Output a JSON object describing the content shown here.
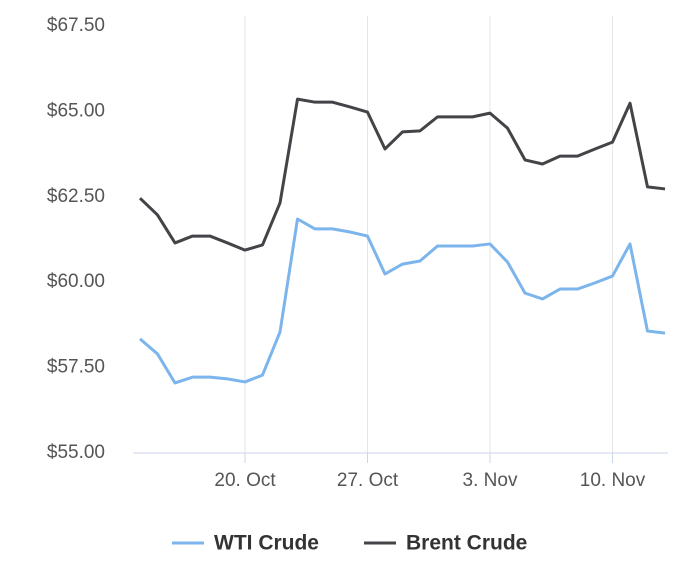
{
  "chart_data": {
    "type": "line",
    "x": [
      "14. Oct",
      "15. Oct",
      "16. Oct",
      "17. Oct",
      "18. Oct",
      "19. Oct",
      "20. Oct",
      "21. Oct",
      "22. Oct",
      "23. Oct",
      "24. Oct",
      "25. Oct",
      "26. Oct",
      "27. Oct",
      "28. Oct",
      "29. Oct",
      "30. Oct",
      "31. Oct",
      "1. Nov",
      "2. Nov",
      "3. Nov",
      "4. Nov",
      "5. Nov",
      "6. Nov",
      "7. Nov",
      "8. Nov",
      "9. Nov",
      "10. Nov",
      "11. Nov",
      "12. Nov",
      "13. Nov"
    ],
    "xticks": [
      "20. Oct",
      "27. Oct",
      "3. Nov",
      "10. Nov"
    ],
    "series": [
      {
        "name": "WTI Crude",
        "color": "#7cb5ec",
        "values": [
          58.34,
          57.9,
          57.05,
          57.22,
          57.22,
          57.17,
          57.08,
          57.28,
          58.54,
          61.85,
          61.56,
          61.56,
          61.47,
          61.35,
          60.24,
          60.53,
          60.62,
          61.06,
          61.06,
          61.06,
          61.12,
          60.59,
          59.68,
          59.51,
          59.8,
          59.8,
          59.98,
          60.18,
          61.12,
          58.57,
          58.51
        ]
      },
      {
        "name": "Brent Crude",
        "color": "#434348",
        "values": [
          62.46,
          61.97,
          61.15,
          61.35,
          61.35,
          61.15,
          60.94,
          61.09,
          62.32,
          65.36,
          65.27,
          65.27,
          65.13,
          64.98,
          63.9,
          64.4,
          64.43,
          64.84,
          64.84,
          64.84,
          64.95,
          64.51,
          63.58,
          63.46,
          63.69,
          63.69,
          63.9,
          64.1,
          65.24,
          62.79,
          62.73
        ]
      }
    ],
    "ylim": [
      55,
      67.5
    ],
    "yticks": [
      {
        "value": 55,
        "label": "$55.00"
      },
      {
        "value": 57.5,
        "label": "$57.50"
      },
      {
        "value": 60,
        "label": "$60.00"
      },
      {
        "value": 62.5,
        "label": "$62.50"
      },
      {
        "value": 65,
        "label": "$65.00"
      },
      {
        "value": 67.5,
        "label": "$67.50"
      }
    ],
    "grid": "x"
  }
}
